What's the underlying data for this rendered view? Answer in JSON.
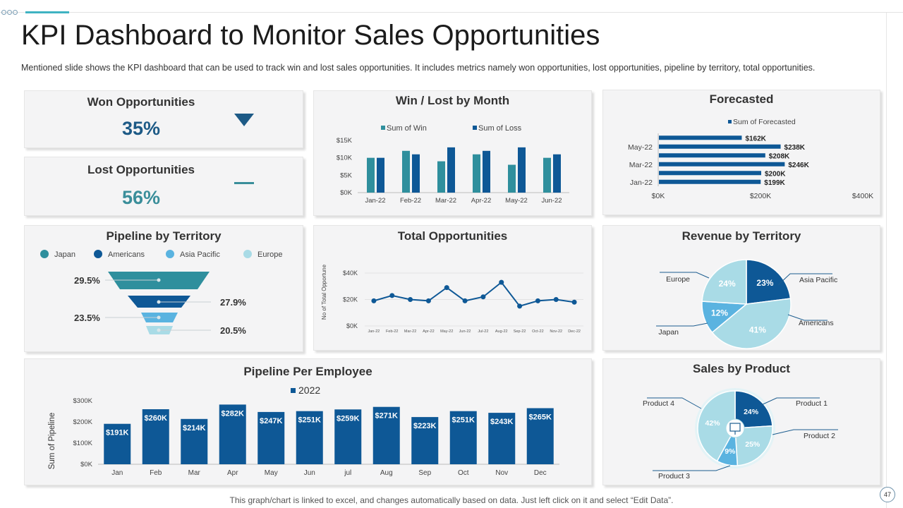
{
  "slide": {
    "title": "KPI Dashboard to Monitor Sales Opportunities",
    "subtitle": "Mentioned slide shows the KPI dashboard that can be used to track win and lost sales opportunities. It includes metrics namely won opportunities, lost opportunities, pipeline by territory, total opportunities.",
    "footer": "This graph/chart is linked to excel, and changes automatically based on data. Just left click on it and select “Edit Data”.",
    "page_number": "47"
  },
  "won": {
    "title": "Won Opportunities",
    "value": "35%",
    "indicator": "triangle-down-icon",
    "color": "#1d5a86"
  },
  "lost": {
    "title": "Lost Opportunities",
    "value": "56%",
    "indicator": "dash-icon",
    "color": "#3a8e9a"
  },
  "colors": {
    "dark_blue": "#0e5896",
    "teal": "#2f8f9d",
    "light_blue": "#5ab3e0",
    "pale_blue": "#a9dbe6"
  },
  "chart_data": [
    {
      "id": "win_lost",
      "type": "bar",
      "title": "Win / Lost by Month",
      "categories": [
        "Jan-22",
        "Feb-22",
        "Mar-22",
        "Apr-22",
        "May-22",
        "Jun-22"
      ],
      "series": [
        {
          "name": "Sum of Win",
          "values": [
            10,
            12,
            9,
            11,
            8,
            10
          ],
          "color": "#2f8f9d"
        },
        {
          "name": "Sum of Loss",
          "values": [
            10,
            11,
            13,
            12,
            13,
            11
          ],
          "color": "#0e5896"
        }
      ],
      "yticks": [
        "$0K",
        "$5K",
        "$10K",
        "$15K"
      ],
      "ylim": [
        0,
        15
      ],
      "legend": "top"
    },
    {
      "id": "forecasted",
      "type": "bar",
      "orientation": "horizontal",
      "title": "Forecasted",
      "series_name": "Sum of Forecasted",
      "categories": [
        "Jun-22",
        "May-22",
        "Apr-22",
        "Mar-22",
        "Feb-22",
        "Jan-22"
      ],
      "category_labels": [
        "",
        "May-22",
        "",
        "Mar-22",
        "",
        "Jan-22"
      ],
      "values": [
        162,
        238,
        208,
        246,
        200,
        199
      ],
      "labels": [
        "$162K",
        "$238K",
        "$208K",
        "$246K",
        "$200K",
        "$199K"
      ],
      "xticks": [
        "$0K",
        "$200K",
        "$400K"
      ],
      "xlim": [
        0,
        400
      ],
      "color": "#0e5896"
    },
    {
      "id": "pipeline_territory",
      "type": "funnel",
      "title": "Pipeline by Territory",
      "legend": [
        {
          "name": "Japan",
          "color": "#2f8f9d"
        },
        {
          "name": "Americans",
          "color": "#0e5896"
        },
        {
          "name": "Asia Pacific",
          "color": "#5ab3e0"
        },
        {
          "name": "Europe",
          "color": "#a9dbe6"
        }
      ],
      "values": [
        29.5,
        27.9,
        23.5,
        20.5
      ],
      "labels": [
        "29.5%",
        "27.9%",
        "23.5%",
        "20.5%"
      ]
    },
    {
      "id": "total_opportunities",
      "type": "line",
      "title": "Total Opportunities",
      "ylabel": "No of Total Opportune",
      "x": [
        "Jan-22",
        "Feb-22",
        "Mar-22",
        "Apr-22",
        "May-22",
        "Jun-22",
        "Jul-22",
        "Aug-22",
        "Sep-22",
        "Oct-22",
        "Nov-22",
        "Dec-22"
      ],
      "values": [
        19,
        23,
        20,
        19,
        29,
        19,
        22,
        33,
        15,
        19,
        20,
        18
      ],
      "yticks": [
        "$0K",
        "$20K",
        "$40K"
      ],
      "ylim": [
        0,
        40
      ],
      "color": "#0e5896"
    },
    {
      "id": "revenue_territory",
      "type": "pie",
      "title": "Revenue by Territory",
      "slices": [
        {
          "name": "Asia Pacific",
          "value": 23,
          "label": "23%",
          "color": "#0e5896"
        },
        {
          "name": "Americans",
          "value": 41,
          "label": "41%",
          "color": "#a9dbe6"
        },
        {
          "name": "Japan",
          "value": 12,
          "label": "12%",
          "color": "#5ab3e0"
        },
        {
          "name": "Europe",
          "value": 24,
          "label": "24%",
          "color": "#a9dbe6"
        }
      ]
    },
    {
      "id": "pipeline_employee",
      "type": "bar",
      "title": "Pipeline Per Employee",
      "series_name": "2022",
      "ylabel": "Sum of Pipeline",
      "categories": [
        "Jan",
        "Feb",
        "Mar",
        "Apr",
        "May",
        "Jun",
        "jul",
        "Aug",
        "Sep",
        "Oct",
        "Nov",
        "Dec"
      ],
      "values": [
        191,
        260,
        214,
        282,
        247,
        251,
        259,
        271,
        223,
        251,
        243,
        265
      ],
      "labels": [
        "$191K",
        "$260K",
        "$214K",
        "$282K",
        "$247K",
        "$251K",
        "$259K",
        "$271K",
        "$223K",
        "$251K",
        "$243K",
        "$265K"
      ],
      "yticks": [
        "$0K",
        "$100K",
        "$200K",
        "$300K"
      ],
      "ylim": [
        0,
        300
      ],
      "color": "#0e5896"
    },
    {
      "id": "sales_product",
      "type": "pie",
      "title": "Sales by Product",
      "center_icon": "presentation-board-icon",
      "slices": [
        {
          "name": "Product 1",
          "value": 24,
          "label": "24%",
          "color": "#0e5896"
        },
        {
          "name": "Product 2",
          "value": 25,
          "label": "25%",
          "color": "#a9dbe6"
        },
        {
          "name": "Product 3",
          "value": 9,
          "label": "9%",
          "color": "#5ab3e0"
        },
        {
          "name": "Product 4",
          "value": 42,
          "label": "42%",
          "color": "#a9dbe6"
        }
      ]
    }
  ]
}
